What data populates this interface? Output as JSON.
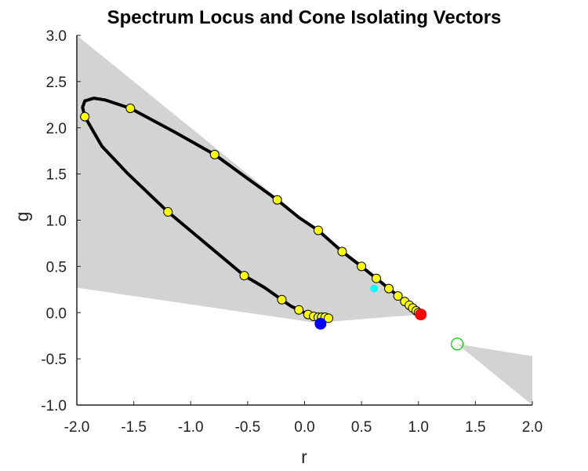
{
  "chart_data": {
    "type": "scatter",
    "title": "Spectrum Locus and Cone Isolating Vectors",
    "xlabel": "r",
    "ylabel": "g",
    "xlim": [
      -2.0,
      2.0
    ],
    "ylim": [
      -1.0,
      3.0
    ],
    "xticks": [
      "-2.0",
      "-1.5",
      "-1.0",
      "-0.5",
      "0.0",
      "0.5",
      "1.0",
      "1.5",
      "2.0"
    ],
    "yticks": [
      "3.0",
      "2.5",
      "2.0",
      "1.5",
      "1.0",
      "0.5",
      "0.0",
      "-0.5",
      "-1.0"
    ],
    "grid": false,
    "colors": {
      "region": "#d3d3d3",
      "locus": "#000000",
      "sample_points": "#ffff00",
      "red_vector": "#ff0000",
      "blue_vector": "#0000ff",
      "cyan_point": "#00ffff",
      "green_vector": "#00cc00"
    },
    "region_upper": [
      [
        -2.0,
        3.0
      ],
      [
        -2.0,
        0.27
      ],
      [
        0.1,
        -0.11
      ],
      [
        1.02,
        -0.02
      ]
    ],
    "region_lower": [
      [
        1.34,
        -0.34
      ],
      [
        2.0,
        -0.47
      ],
      [
        2.0,
        -1.0
      ]
    ],
    "locus_curve": [
      [
        0.21,
        -0.06
      ],
      [
        0.14,
        -0.05
      ],
      [
        0.09,
        -0.04
      ],
      [
        0.03,
        -0.02
      ],
      [
        -0.05,
        0.03
      ],
      [
        -0.12,
        0.07
      ],
      [
        -0.2,
        0.14
      ],
      [
        -0.35,
        0.27
      ],
      [
        -0.53,
        0.4
      ],
      [
        -0.85,
        0.73
      ],
      [
        -1.2,
        1.09
      ],
      [
        -1.55,
        1.5
      ],
      [
        -1.78,
        1.8
      ],
      [
        -1.93,
        2.12
      ],
      [
        -1.95,
        2.22
      ],
      [
        -1.93,
        2.29
      ],
      [
        -1.85,
        2.32
      ],
      [
        -1.75,
        2.3
      ],
      [
        -1.53,
        2.21
      ],
      [
        -1.15,
        1.96
      ],
      [
        -0.79,
        1.71
      ],
      [
        -0.5,
        1.45
      ],
      [
        -0.24,
        1.22
      ],
      [
        -0.05,
        1.03
      ],
      [
        0.12,
        0.89
      ],
      [
        0.33,
        0.66
      ],
      [
        0.5,
        0.5
      ],
      [
        0.63,
        0.37
      ],
      [
        0.74,
        0.26
      ],
      [
        0.82,
        0.18
      ],
      [
        0.88,
        0.12
      ],
      [
        0.92,
        0.08
      ],
      [
        0.95,
        0.05
      ],
      [
        0.98,
        0.02
      ],
      [
        1.0,
        0.0
      ],
      [
        1.02,
        -0.02
      ]
    ],
    "sample_points": [
      [
        -1.93,
        2.12
      ],
      [
        -1.53,
        2.21
      ],
      [
        -0.79,
        1.71
      ],
      [
        -0.24,
        1.22
      ],
      [
        0.12,
        0.89
      ],
      [
        0.33,
        0.66
      ],
      [
        0.5,
        0.5
      ],
      [
        0.63,
        0.37
      ],
      [
        0.74,
        0.26
      ],
      [
        0.82,
        0.18
      ],
      [
        0.88,
        0.12
      ],
      [
        0.92,
        0.08
      ],
      [
        0.95,
        0.05
      ],
      [
        0.98,
        0.02
      ],
      [
        1.0,
        0.0
      ],
      [
        -1.2,
        1.09
      ],
      [
        -0.53,
        0.4
      ],
      [
        -0.2,
        0.14
      ],
      [
        -0.05,
        0.03
      ],
      [
        0.03,
        -0.02
      ],
      [
        0.08,
        -0.04
      ],
      [
        0.12,
        -0.05
      ],
      [
        0.15,
        -0.05
      ],
      [
        0.18,
        -0.05
      ],
      [
        0.21,
        -0.06
      ]
    ],
    "highlight_points": [
      {
        "point": [
          1.02,
          -0.02
        ],
        "style": "filled",
        "color": "#ff0000"
      },
      {
        "point": [
          0.14,
          -0.12
        ],
        "style": "filled",
        "color": "#0000ff"
      },
      {
        "point": [
          0.61,
          0.26
        ],
        "style": "filled-small",
        "color": "#00ffff"
      },
      {
        "point": [
          1.34,
          -0.34
        ],
        "style": "hollow",
        "color": "#00cc00"
      }
    ]
  }
}
